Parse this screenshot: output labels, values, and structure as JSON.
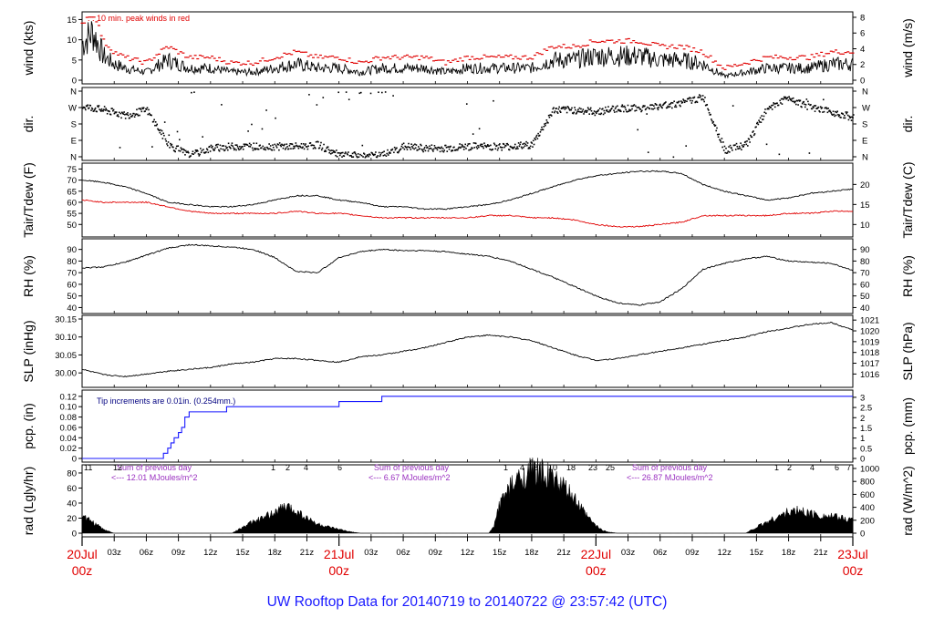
{
  "title": "UW Rooftop Data for 20140719  to  20140722 @ 23:57:42  (UTC)",
  "colors": {
    "temp": "#000000",
    "dew": "#e00000",
    "gust": "#e00000",
    "precip": "#1a1aff",
    "note": "#9a30c0",
    "date": "#e00000",
    "footer": "#1a1aff"
  },
  "x_axis": {
    "hour_labels": [
      "03z",
      "06z",
      "09z",
      "12z",
      "15z",
      "18z",
      "21z",
      "03z",
      "06z",
      "09z",
      "12z",
      "15z",
      "18z",
      "21z",
      "03z",
      "06z",
      "09z",
      "12z",
      "15z",
      "18z",
      "21z"
    ],
    "date_labels": [
      {
        "day": "20Jul",
        "hour": "00z"
      },
      {
        "day": "21Jul",
        "hour": "00z"
      },
      {
        "day": "22Jul",
        "hour": "00z"
      },
      {
        "day": "23Jul",
        "hour": "00z"
      }
    ]
  },
  "chart_data": [
    {
      "type": "line",
      "id": "wind",
      "ylabel": "wind (kts)",
      "y2label": "wind (m/s)",
      "ylim": [
        0,
        16
      ],
      "yticks": [
        "0",
        "5",
        "10",
        "15"
      ],
      "y2lim": [
        0,
        8.23
      ],
      "y2ticks": [
        "0",
        "2",
        "4",
        "6",
        "8"
      ],
      "annotation": "10 min. peak winds in red",
      "series": [
        {
          "name": "wind",
          "x_hours": [
            0,
            1,
            2,
            3,
            4,
            6,
            8,
            10,
            12,
            14,
            16,
            18,
            20,
            22,
            24,
            26,
            28,
            30,
            32,
            34,
            36,
            38,
            40,
            42,
            44,
            46,
            48,
            50,
            52,
            54,
            56,
            58,
            60,
            62,
            64,
            66,
            68,
            70,
            72
          ],
          "values": [
            9,
            12,
            6,
            4,
            3,
            2,
            5,
            3,
            3,
            2,
            2,
            3,
            4,
            3,
            3,
            2,
            3,
            3,
            3,
            2,
            3,
            3,
            3,
            3,
            5,
            5,
            6,
            6,
            6,
            5,
            5,
            4,
            1,
            2,
            3,
            3,
            3,
            4,
            4
          ]
        }
      ]
    },
    {
      "type": "scatter",
      "id": "dir",
      "ylabel": "dir.",
      "y2label": "dir.",
      "yticks": [
        "N",
        "E",
        "S",
        "W",
        "N"
      ],
      "y2ticks": [
        "N",
        "E",
        "S",
        "W",
        "N"
      ],
      "series": [
        {
          "name": "direction",
          "x_hours": [
            0,
            2,
            4,
            6,
            8,
            10,
            12,
            14,
            16,
            18,
            20,
            22,
            24,
            26,
            28,
            30,
            32,
            34,
            36,
            38,
            40,
            42,
            44,
            46,
            48,
            50,
            52,
            54,
            56,
            58,
            60,
            62,
            64,
            66,
            68,
            70,
            72
          ],
          "values": [
            280,
            260,
            230,
            260,
            70,
            10,
            50,
            60,
            60,
            60,
            60,
            70,
            10,
            10,
            10,
            60,
            50,
            50,
            60,
            60,
            60,
            70,
            260,
            260,
            250,
            270,
            270,
            280,
            300,
            330,
            40,
            70,
            270,
            330,
            270,
            250,
            220
          ]
        }
      ]
    },
    {
      "type": "line",
      "id": "temp",
      "ylabel": "Tair/Tdew (F)",
      "y2label": "Tair/Tdew (C)",
      "ylim": [
        46,
        76
      ],
      "yticks": [
        "50",
        "55",
        "60",
        "65",
        "70",
        "75"
      ],
      "y2lim": [
        7.8,
        24.4
      ],
      "y2ticks": [
        "10",
        "15",
        "20"
      ],
      "series": [
        {
          "name": "Tair",
          "x_hours": [
            0,
            2,
            4,
            6,
            8,
            10,
            12,
            14,
            16,
            18,
            20,
            22,
            24,
            26,
            28,
            30,
            32,
            34,
            36,
            38,
            40,
            42,
            44,
            46,
            48,
            50,
            52,
            54,
            56,
            58,
            60,
            62,
            64,
            66,
            68,
            70,
            72
          ],
          "values": [
            70,
            69,
            67,
            64,
            60,
            59,
            58,
            58,
            59,
            61,
            63,
            63,
            61,
            60,
            58,
            58,
            57,
            57,
            58,
            59,
            61,
            64,
            67,
            70,
            72,
            73,
            74,
            74,
            73,
            68,
            65,
            63,
            61,
            62,
            64,
            65,
            66
          ]
        },
        {
          "name": "Tdew",
          "x_hours": [
            0,
            2,
            4,
            6,
            8,
            10,
            12,
            14,
            16,
            18,
            20,
            22,
            24,
            26,
            28,
            30,
            32,
            34,
            36,
            38,
            40,
            42,
            44,
            46,
            48,
            50,
            52,
            54,
            56,
            58,
            60,
            62,
            64,
            66,
            68,
            70,
            72
          ],
          "values": [
            61,
            60,
            60,
            60,
            58,
            56,
            55,
            55,
            55,
            55,
            56,
            55,
            55,
            54,
            53,
            53,
            53,
            53,
            53,
            54,
            54,
            53,
            53,
            52,
            50,
            49,
            49,
            50,
            51,
            54,
            54,
            54,
            54,
            55,
            55,
            56,
            56
          ]
        }
      ]
    },
    {
      "type": "line",
      "id": "rh",
      "ylabel": "RH (%)",
      "y2label": "RH (%)",
      "ylim": [
        38,
        96
      ],
      "yticks": [
        "40",
        "50",
        "60",
        "70",
        "80",
        "90"
      ],
      "y2ticks": [
        "40",
        "50",
        "60",
        "70",
        "80",
        "90"
      ],
      "series": [
        {
          "name": "RH",
          "x_hours": [
            0,
            2,
            4,
            6,
            8,
            10,
            12,
            14,
            16,
            18,
            20,
            22,
            24,
            26,
            28,
            30,
            32,
            34,
            36,
            38,
            40,
            42,
            44,
            46,
            48,
            50,
            52,
            54,
            56,
            58,
            60,
            62,
            64,
            66,
            68,
            70,
            72
          ],
          "values": [
            74,
            75,
            79,
            85,
            91,
            94,
            93,
            92,
            90,
            83,
            71,
            70,
            83,
            88,
            90,
            89,
            89,
            88,
            86,
            84,
            80,
            73,
            66,
            58,
            50,
            44,
            42,
            45,
            56,
            73,
            78,
            82,
            84,
            80,
            79,
            78,
            72
          ]
        }
      ]
    },
    {
      "type": "line",
      "id": "slp",
      "ylabel": "SLP (inHg)",
      "y2label": "SLP (hPa)",
      "ylim": [
        29.97,
        30.15
      ],
      "yticks": [
        "30.00",
        "30.05",
        "30.10",
        "30.15"
      ],
      "y2lim": [
        1015.1,
        1021.1
      ],
      "y2ticks": [
        "1016",
        "1017",
        "1018",
        "1019",
        "1020",
        "1021"
      ],
      "series": [
        {
          "name": "SLP",
          "x_hours": [
            0,
            2,
            4,
            6,
            8,
            10,
            12,
            14,
            16,
            18,
            20,
            22,
            24,
            26,
            28,
            30,
            32,
            34,
            36,
            38,
            40,
            42,
            44,
            46,
            48,
            50,
            52,
            54,
            56,
            58,
            60,
            62,
            64,
            66,
            68,
            70,
            72
          ],
          "values": [
            30.01,
            29.995,
            29.99,
            29.997,
            30.005,
            30.01,
            30.015,
            30.025,
            30.03,
            30.04,
            30.04,
            30.035,
            30.03,
            30.045,
            30.05,
            30.06,
            30.07,
            30.085,
            30.1,
            30.105,
            30.1,
            30.09,
            30.07,
            30.05,
            30.035,
            30.04,
            30.05,
            30.06,
            30.07,
            30.08,
            30.09,
            30.1,
            30.115,
            30.125,
            30.135,
            30.14,
            30.12
          ]
        }
      ]
    },
    {
      "type": "line",
      "id": "pcp",
      "ylabel": "pcp. (in)",
      "y2label": "pcp. (mm)",
      "ylim": [
        0,
        0.125
      ],
      "yticks": [
        "0",
        "0.02",
        "0.04",
        "0.06",
        "0.08",
        "0.10",
        "0.12"
      ],
      "y2lim": [
        0,
        3.175
      ],
      "y2ticks": [
        "0",
        "0.5",
        "1",
        "1.5",
        "2",
        "2.5",
        "3"
      ],
      "annotation": "Tip increments are 0.01in. (0.254mm.)",
      "series": [
        {
          "name": "precip",
          "x_hours": [
            0,
            7.3,
            7.6,
            8.0,
            8.3,
            8.6,
            9.0,
            9.3,
            9.6,
            10.0,
            13.5,
            24.0,
            28.0,
            72.0
          ],
          "values": [
            0,
            0,
            0.01,
            0.02,
            0.03,
            0.04,
            0.05,
            0.06,
            0.08,
            0.09,
            0.1,
            0.11,
            0.12,
            0.12
          ]
        }
      ]
    },
    {
      "type": "area",
      "id": "rad",
      "ylabel": "rad (Lgly/hr)",
      "y2label": "rad (W/m^2)",
      "ylim": [
        0,
        86
      ],
      "yticks": [
        "0",
        "20",
        "40",
        "60",
        "80"
      ],
      "y2lim": [
        0,
        1000
      ],
      "y2ticks": [
        "0",
        "200",
        "400",
        "600",
        "800",
        "1000"
      ],
      "notes": [
        {
          "line1": "Sum of previous day",
          "line2": "<--- 12.01 MJoules/m^2"
        },
        {
          "line1": "Sum of previous day",
          "line2": "<--- 6.67 MJoules/m^2"
        },
        {
          "line1": "Sum of previous day",
          "line2": "<--- 26.87 MJoules/m^2"
        }
      ],
      "hour_marks": [
        "11",
        "12",
        "1",
        "2",
        "4",
        "6",
        "1",
        "4",
        "8",
        "10",
        "18",
        "23",
        "25",
        "1",
        "2",
        "4",
        "6",
        "7"
      ],
      "series": [
        {
          "name": "radiation",
          "x_hours": [
            0,
            1,
            2,
            3,
            14,
            15,
            16,
            17,
            18,
            19,
            20,
            21,
            22,
            23,
            24,
            25,
            26,
            38,
            38.5,
            39,
            40,
            41,
            42,
            43,
            44,
            45,
            46,
            47,
            48,
            48.5,
            49,
            50,
            62,
            63,
            64,
            65,
            66,
            67,
            68,
            69,
            70,
            71,
            72
          ],
          "values": [
            22,
            15,
            5,
            0,
            0,
            8,
            15,
            20,
            28,
            35,
            30,
            20,
            12,
            8,
            5,
            2,
            0,
            0,
            10,
            40,
            60,
            75,
            82,
            80,
            72,
            60,
            45,
            25,
            10,
            5,
            2,
            0,
            0,
            8,
            15,
            22,
            28,
            30,
            26,
            24,
            22,
            20,
            18
          ]
        }
      ]
    }
  ]
}
